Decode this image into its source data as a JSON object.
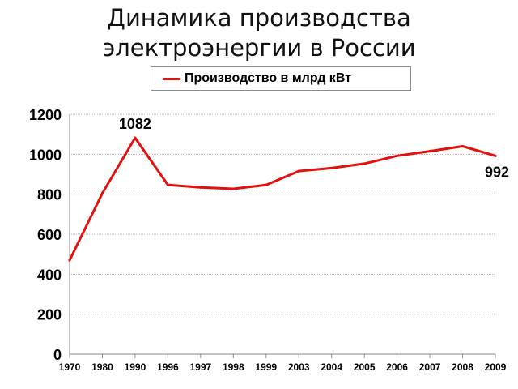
{
  "chart_data": {
    "type": "line",
    "title": [
      "Динамика производства",
      "электроэнергии в России"
    ],
    "xlabel": "",
    "ylabel": "",
    "categories": [
      "1970",
      "1980",
      "1990",
      "1996",
      "1997",
      "1998",
      "1999",
      "2003",
      "2004",
      "2005",
      "2006",
      "2007",
      "2008",
      "2009"
    ],
    "series": [
      {
        "name": "Производство в млрд кВт",
        "color": "#e3100f",
        "values": [
          470,
          805,
          1082,
          847,
          834,
          827,
          846,
          916,
          931,
          953,
          992,
          1015,
          1040,
          992
        ]
      }
    ],
    "ylim": [
      0,
      1200
    ],
    "yticks": [
      "0",
      "200",
      "400",
      "600",
      "800",
      "1000",
      "1200"
    ],
    "grid": true,
    "legend": "top-center",
    "data_labels": [
      {
        "index": 2,
        "text": "1082"
      },
      {
        "index": 13,
        "text": "992"
      }
    ]
  }
}
